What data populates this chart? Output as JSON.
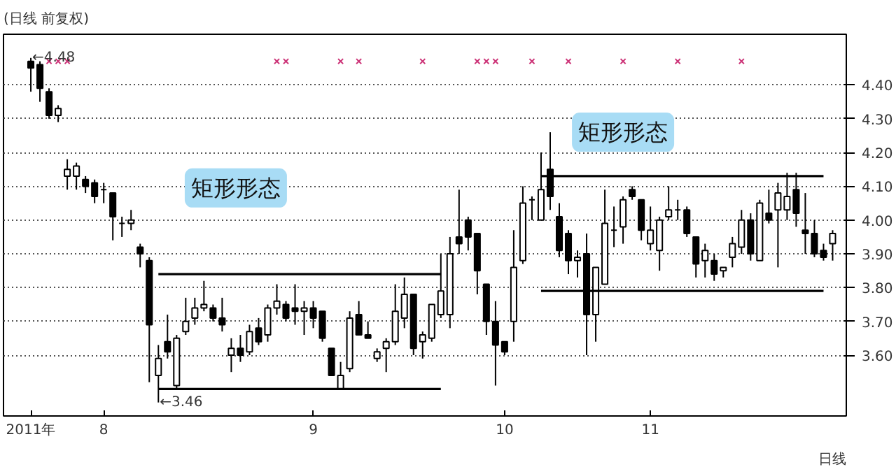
{
  "chart_data": {
    "type": "candlestick",
    "title": "(日线 前复权)",
    "categories": [
      "2011年",
      null,
      null,
      null,
      null,
      null,
      null,
      null,
      "8",
      null,
      null,
      null,
      null,
      null,
      null,
      null,
      null,
      null,
      null,
      null,
      null,
      null,
      null,
      null,
      null,
      null,
      null,
      null,
      null,
      null,
      null,
      "9",
      null,
      null,
      null,
      null,
      null,
      null,
      null,
      null,
      null,
      null,
      null,
      null,
      null,
      null,
      null,
      null,
      null,
      null,
      null,
      null,
      "10",
      null,
      null,
      null,
      null,
      null,
      null,
      null,
      null,
      null,
      null,
      null,
      null,
      null,
      null,
      null,
      "11",
      null,
      null,
      null,
      null,
      null,
      null,
      null,
      null,
      null,
      null,
      null,
      null,
      null,
      null,
      null,
      null,
      null,
      null,
      null,
      null
    ],
    "ylim": [
      3.42,
      4.55
    ],
    "yticks": [
      {
        "value": 3.6,
        "label": "3.60"
      },
      {
        "value": 3.7,
        "label": "3.70"
      },
      {
        "value": 3.8,
        "label": "3.80"
      },
      {
        "value": 3.9,
        "label": "3.90"
      },
      {
        "value": 4.0,
        "label": "4.00"
      },
      {
        "value": 4.1,
        "label": "4.10"
      },
      {
        "value": 4.2,
        "label": "4.20"
      },
      {
        "value": 4.3,
        "label": "4.30"
      },
      {
        "value": 4.4,
        "label": "4.40"
      }
    ],
    "grid": "y",
    "series": [
      {
        "color": "#000000",
        "ohlc": [
          [
            4.47,
            4.48,
            4.38,
            4.45
          ],
          [
            4.46,
            4.47,
            4.35,
            4.39
          ],
          [
            4.38,
            4.39,
            4.3,
            4.31
          ],
          [
            4.31,
            4.34,
            4.29,
            4.33
          ],
          [
            4.13,
            4.18,
            4.09,
            4.15
          ],
          [
            4.13,
            4.17,
            4.09,
            4.16
          ],
          [
            4.12,
            4.13,
            4.08,
            4.1
          ],
          [
            4.11,
            4.12,
            4.05,
            4.07
          ],
          [
            4.09,
            4.11,
            4.05,
            4.09
          ],
          [
            4.08,
            4.08,
            3.94,
            4.01
          ],
          [
            3.99,
            4.01,
            3.95,
            3.99
          ],
          [
            3.99,
            4.03,
            3.97,
            4.0
          ],
          [
            3.92,
            3.93,
            3.86,
            3.9
          ],
          [
            3.88,
            3.89,
            3.52,
            3.69
          ],
          [
            3.54,
            3.63,
            3.46,
            3.59
          ],
          [
            3.64,
            3.72,
            3.59,
            3.61
          ],
          [
            3.51,
            3.66,
            3.5,
            3.65
          ],
          [
            3.67,
            3.77,
            3.66,
            3.7
          ],
          [
            3.71,
            3.77,
            3.69,
            3.74
          ],
          [
            3.74,
            3.82,
            3.73,
            3.75
          ],
          [
            3.74,
            3.75,
            3.7,
            3.71
          ],
          [
            3.71,
            3.77,
            3.67,
            3.69
          ],
          [
            3.6,
            3.65,
            3.55,
            3.62
          ],
          [
            3.62,
            3.66,
            3.58,
            3.6
          ],
          [
            3.61,
            3.69,
            3.6,
            3.67
          ],
          [
            3.68,
            3.71,
            3.63,
            3.64
          ],
          [
            3.66,
            3.75,
            3.64,
            3.74
          ],
          [
            3.74,
            3.81,
            3.72,
            3.76
          ],
          [
            3.75,
            3.76,
            3.7,
            3.71
          ],
          [
            3.74,
            3.81,
            3.69,
            3.73
          ],
          [
            3.73,
            3.76,
            3.66,
            3.74
          ],
          [
            3.74,
            3.76,
            3.68,
            3.71
          ],
          [
            3.73,
            3.73,
            3.64,
            3.65
          ],
          [
            3.62,
            3.62,
            3.54,
            3.54
          ],
          [
            3.5,
            3.58,
            3.5,
            3.54
          ],
          [
            3.56,
            3.73,
            3.55,
            3.71
          ],
          [
            3.72,
            3.76,
            3.66,
            3.66
          ],
          [
            3.66,
            3.7,
            3.65,
            3.65
          ],
          [
            3.59,
            3.62,
            3.58,
            3.61
          ],
          [
            3.62,
            3.65,
            3.55,
            3.64
          ],
          [
            3.64,
            3.81,
            3.63,
            3.73
          ],
          [
            3.71,
            3.83,
            3.68,
            3.78
          ],
          [
            3.78,
            3.78,
            3.6,
            3.62
          ],
          [
            3.64,
            3.67,
            3.59,
            3.66
          ],
          [
            3.65,
            3.75,
            3.64,
            3.75
          ],
          [
            3.72,
            3.9,
            3.71,
            3.79
          ],
          [
            3.72,
            3.95,
            3.68,
            3.9
          ],
          [
            3.95,
            4.09,
            3.9,
            3.93
          ],
          [
            4.0,
            4.01,
            3.91,
            3.95
          ],
          [
            3.96,
            3.96,
            3.78,
            3.85
          ],
          [
            3.81,
            3.81,
            3.66,
            3.7
          ],
          [
            3.7,
            3.76,
            3.51,
            3.63
          ],
          [
            3.64,
            3.64,
            3.6,
            3.61
          ],
          [
            3.7,
            3.97,
            3.64,
            3.86
          ],
          [
            3.88,
            4.1,
            3.87,
            4.05
          ],
          [
            4.06,
            4.07,
            4.0,
            4.06
          ],
          [
            4.0,
            4.2,
            4.0,
            4.09
          ],
          [
            4.15,
            4.26,
            4.03,
            4.07
          ],
          [
            4.01,
            4.05,
            3.89,
            3.91
          ],
          [
            3.96,
            3.97,
            3.84,
            3.88
          ],
          [
            3.88,
            3.91,
            3.83,
            3.89
          ],
          [
            3.9,
            3.96,
            3.6,
            3.72
          ],
          [
            3.72,
            3.86,
            3.64,
            3.86
          ],
          [
            3.81,
            4.09,
            3.81,
            3.99
          ],
          [
            3.97,
            4.04,
            3.92,
            3.97
          ],
          [
            3.98,
            4.07,
            3.93,
            4.06
          ],
          [
            4.09,
            4.1,
            4.06,
            4.07
          ],
          [
            4.06,
            4.06,
            3.94,
            3.97
          ],
          [
            3.93,
            4.04,
            3.91,
            3.97
          ],
          [
            3.91,
            4.01,
            3.85,
            4.0
          ],
          [
            4.01,
            4.1,
            4.0,
            4.03
          ],
          [
            4.03,
            4.06,
            4.0,
            4.03
          ],
          [
            4.03,
            4.04,
            3.95,
            3.96
          ],
          [
            3.95,
            3.95,
            3.83,
            3.87
          ],
          [
            3.88,
            3.93,
            3.83,
            3.91
          ],
          [
            3.88,
            3.9,
            3.82,
            3.84
          ],
          [
            3.85,
            3.86,
            3.83,
            3.86
          ],
          [
            3.89,
            3.95,
            3.86,
            3.93
          ],
          [
            3.92,
            4.03,
            3.9,
            4.0
          ],
          [
            4.0,
            4.02,
            3.88,
            3.9
          ],
          [
            3.88,
            4.06,
            3.88,
            4.05
          ],
          [
            4.02,
            4.09,
            3.99,
            4.0
          ],
          [
            4.03,
            4.11,
            3.86,
            4.08
          ],
          [
            4.03,
            4.14,
            4.0,
            4.07
          ],
          [
            4.09,
            4.14,
            3.98,
            4.02
          ],
          [
            3.97,
            4.08,
            3.9,
            3.96
          ],
          [
            3.96,
            4.0,
            3.89,
            3.9
          ],
          [
            3.91,
            3.93,
            3.88,
            3.89
          ],
          [
            3.93,
            3.97,
            3.88,
            3.96
          ]
        ]
      },
      {
        "type": "line",
        "color": "#000000",
        "values": [
          null,
          null,
          null,
          null,
          null,
          null,
          null,
          null,
          null,
          null,
          null,
          null,
          null,
          null,
          3.84,
          3.84,
          3.84,
          3.84,
          3.84,
          3.84,
          3.84,
          3.84,
          3.84,
          3.84,
          3.84,
          3.84,
          3.84,
          3.84,
          3.84,
          3.84,
          3.84,
          3.84,
          3.84,
          3.84,
          3.84,
          3.84,
          3.84,
          3.84,
          3.84,
          3.84,
          3.84,
          3.84,
          3.84,
          3.84,
          3.84,
          3.84,
          null,
          null,
          null,
          null,
          null,
          null,
          null,
          null,
          null,
          null,
          null,
          null,
          null,
          null,
          null,
          null,
          null,
          null,
          null,
          null,
          null,
          null,
          null,
          null,
          null,
          null,
          null,
          null,
          null,
          null,
          null,
          null,
          null,
          null,
          null,
          null,
          null,
          null,
          null,
          null,
          null,
          null,
          null
        ]
      },
      {
        "type": "line",
        "color": "#000000",
        "values": [
          null,
          null,
          null,
          null,
          null,
          null,
          null,
          null,
          null,
          null,
          null,
          null,
          null,
          null,
          3.5,
          3.5,
          3.5,
          3.5,
          3.5,
          3.5,
          3.5,
          3.5,
          3.5,
          3.5,
          3.5,
          3.5,
          3.5,
          3.5,
          3.5,
          3.5,
          3.5,
          3.5,
          3.5,
          3.5,
          3.5,
          3.5,
          3.5,
          3.5,
          3.5,
          3.5,
          3.5,
          3.5,
          3.5,
          3.5,
          3.5,
          3.5,
          null,
          null,
          null,
          null,
          null,
          null,
          null,
          null,
          null,
          null,
          null,
          null,
          null,
          null,
          null,
          null,
          null,
          null,
          null,
          null,
          null,
          null,
          null,
          null,
          null,
          null,
          null,
          null,
          null,
          null,
          null,
          null,
          null,
          null,
          null,
          null,
          null,
          null,
          null,
          null,
          null,
          null,
          null
        ]
      },
      {
        "type": "line",
        "color": "#000000",
        "values": [
          null,
          null,
          null,
          null,
          null,
          null,
          null,
          null,
          null,
          null,
          null,
          null,
          null,
          null,
          null,
          null,
          null,
          null,
          null,
          null,
          null,
          null,
          null,
          null,
          null,
          null,
          null,
          null,
          null,
          null,
          null,
          null,
          null,
          null,
          null,
          null,
          null,
          null,
          null,
          null,
          null,
          null,
          null,
          null,
          null,
          null,
          null,
          null,
          null,
          null,
          null,
          null,
          null,
          null,
          null,
          null,
          4.13,
          4.13,
          4.13,
          4.13,
          4.13,
          4.13,
          4.13,
          4.13,
          4.13,
          4.13,
          4.13,
          4.13,
          4.13,
          4.13,
          4.13,
          4.13,
          4.13,
          4.13,
          4.13,
          4.13,
          4.13,
          4.13,
          4.13,
          4.13,
          4.13,
          4.13,
          4.13,
          4.13,
          4.13,
          4.13,
          4.13,
          4.13,
          null
        ]
      },
      {
        "type": "line",
        "color": "#000000",
        "values": [
          null,
          null,
          null,
          null,
          null,
          null,
          null,
          null,
          null,
          null,
          null,
          null,
          null,
          null,
          null,
          null,
          null,
          null,
          null,
          null,
          null,
          null,
          null,
          null,
          null,
          null,
          null,
          null,
          null,
          null,
          null,
          null,
          null,
          null,
          null,
          null,
          null,
          null,
          null,
          null,
          null,
          null,
          null,
          null,
          null,
          null,
          null,
          null,
          null,
          null,
          null,
          null,
          null,
          null,
          null,
          null,
          3.79,
          3.79,
          3.79,
          3.79,
          3.79,
          3.79,
          3.79,
          3.79,
          3.79,
          3.79,
          3.79,
          3.79,
          3.79,
          3.79,
          3.79,
          3.79,
          3.79,
          3.79,
          3.79,
          3.79,
          3.79,
          3.79,
          3.79,
          3.79,
          3.79,
          3.79,
          3.79,
          3.79,
          3.79,
          3.79,
          3.79,
          3.79,
          null
        ]
      },
      {
        "type": "scatter",
        "marker": "cross",
        "color": "#cc3377",
        "values": [
          null,
          null,
          4.47,
          4.47,
          4.47,
          null,
          null,
          null,
          null,
          null,
          null,
          null,
          null,
          null,
          null,
          null,
          null,
          null,
          null,
          null,
          null,
          null,
          null,
          null,
          null,
          null,
          null,
          4.47,
          4.47,
          null,
          null,
          null,
          null,
          null,
          4.47,
          null,
          4.47,
          null,
          null,
          null,
          null,
          null,
          null,
          4.47,
          null,
          null,
          null,
          null,
          null,
          4.47,
          4.47,
          4.47,
          null,
          null,
          null,
          4.47,
          null,
          null,
          null,
          4.47,
          null,
          null,
          null,
          null,
          null,
          4.47,
          null,
          null,
          null,
          null,
          null,
          4.47,
          null,
          null,
          null,
          null,
          null,
          null,
          4.47,
          null,
          null,
          null,
          null,
          null,
          null,
          null,
          null,
          null,
          null
        ]
      }
    ],
    "annotations": [
      "←3.46",
      "←4.48",
      "矩形形态",
      "矩形形态",
      "日线"
    ]
  }
}
